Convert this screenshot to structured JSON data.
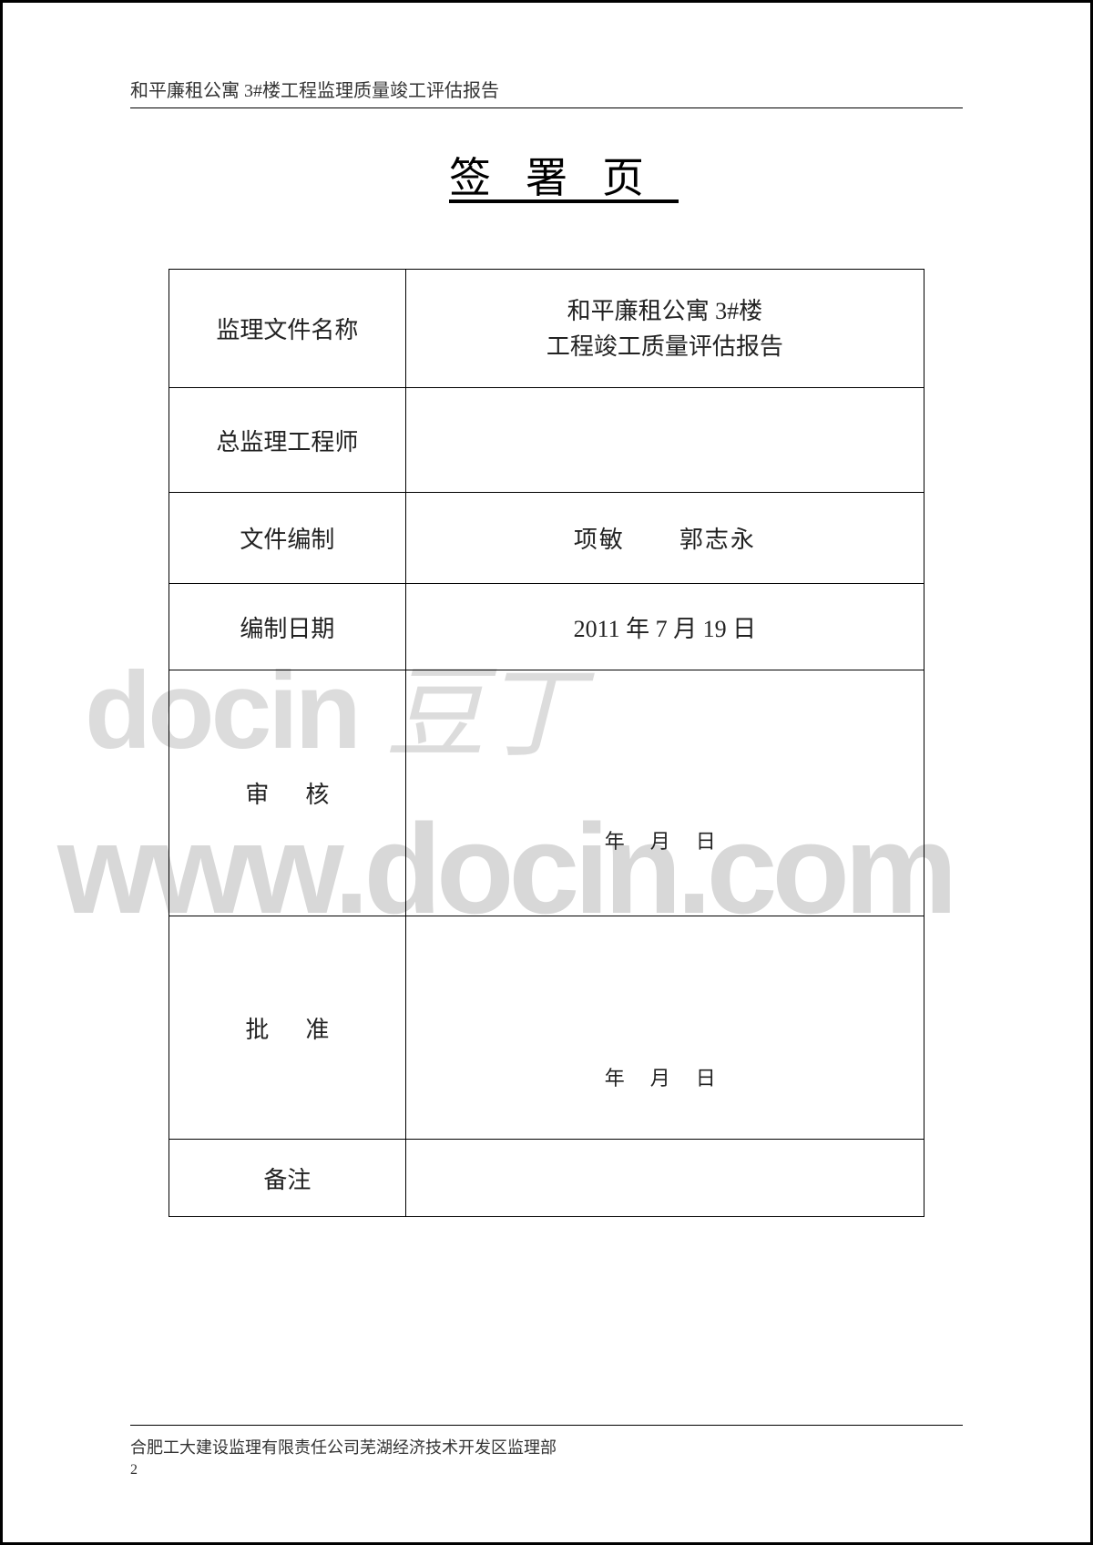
{
  "header": "和平廉租公寓 3#楼工程监理质量竣工评估报告",
  "title": "签署页",
  "rows": {
    "doc_name_label": "监理文件名称",
    "doc_name_line1": "和平廉租公寓 3#楼",
    "doc_name_line2": "工程竣工质量评估报告",
    "chief_label": "总监理工程师",
    "chief_value": "",
    "compiler_label": "文件编制",
    "compiler_a": "项敏",
    "compiler_b": "郭志永",
    "date_label": "编制日期",
    "date_value": "2011 年 7 月 19 日",
    "review_label": "审核",
    "review_date": "年月日",
    "approve_label": "批准",
    "approve_date": "年月日",
    "notes_label": "备注",
    "notes_value": ""
  },
  "footer": {
    "org": "合肥工大建设监理有限责任公司芜湖经济技术开发区监理部",
    "page": "2"
  },
  "watermark": {
    "brand": "docin",
    "cn": "豆丁",
    "url": "www.docin.com"
  },
  "colors": {
    "text": "#222222",
    "border": "#000000",
    "watermark": "#d8d8d8",
    "background": "#ffffff"
  },
  "fonts": {
    "body": "SimSun",
    "title_size_pt": 34,
    "cell_size_pt": 20,
    "header_size_pt": 15,
    "footer_size_pt": 13
  }
}
